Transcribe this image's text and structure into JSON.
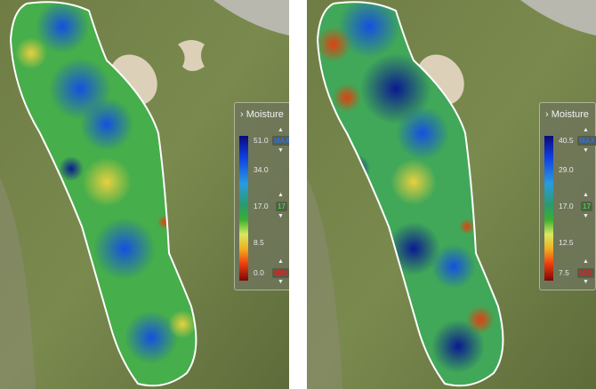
{
  "maps": [
    {
      "legend": {
        "title": "Moisture",
        "ticks": [
          "51.0",
          "34.0",
          "17.0",
          "8.5",
          "0.0"
        ],
        "max_label": "MAX",
        "mid_label": "17",
        "min_label": "MIN"
      }
    },
    {
      "legend": {
        "title": "Moisture",
        "ticks": [
          "40.5",
          "29.0",
          "17.0",
          "12.5",
          "7.5"
        ],
        "max_label": "MAX",
        "mid_label": "17",
        "min_label": "MIN"
      }
    }
  ],
  "icons": {
    "expand": "chevron-right-icon",
    "up": "triangle-up-icon",
    "down": "triangle-down-icon"
  },
  "colors": {
    "max": "#2f6fe0",
    "mid": "#3ecf3e",
    "min": "#e02020",
    "panel": "#6e765a"
  }
}
